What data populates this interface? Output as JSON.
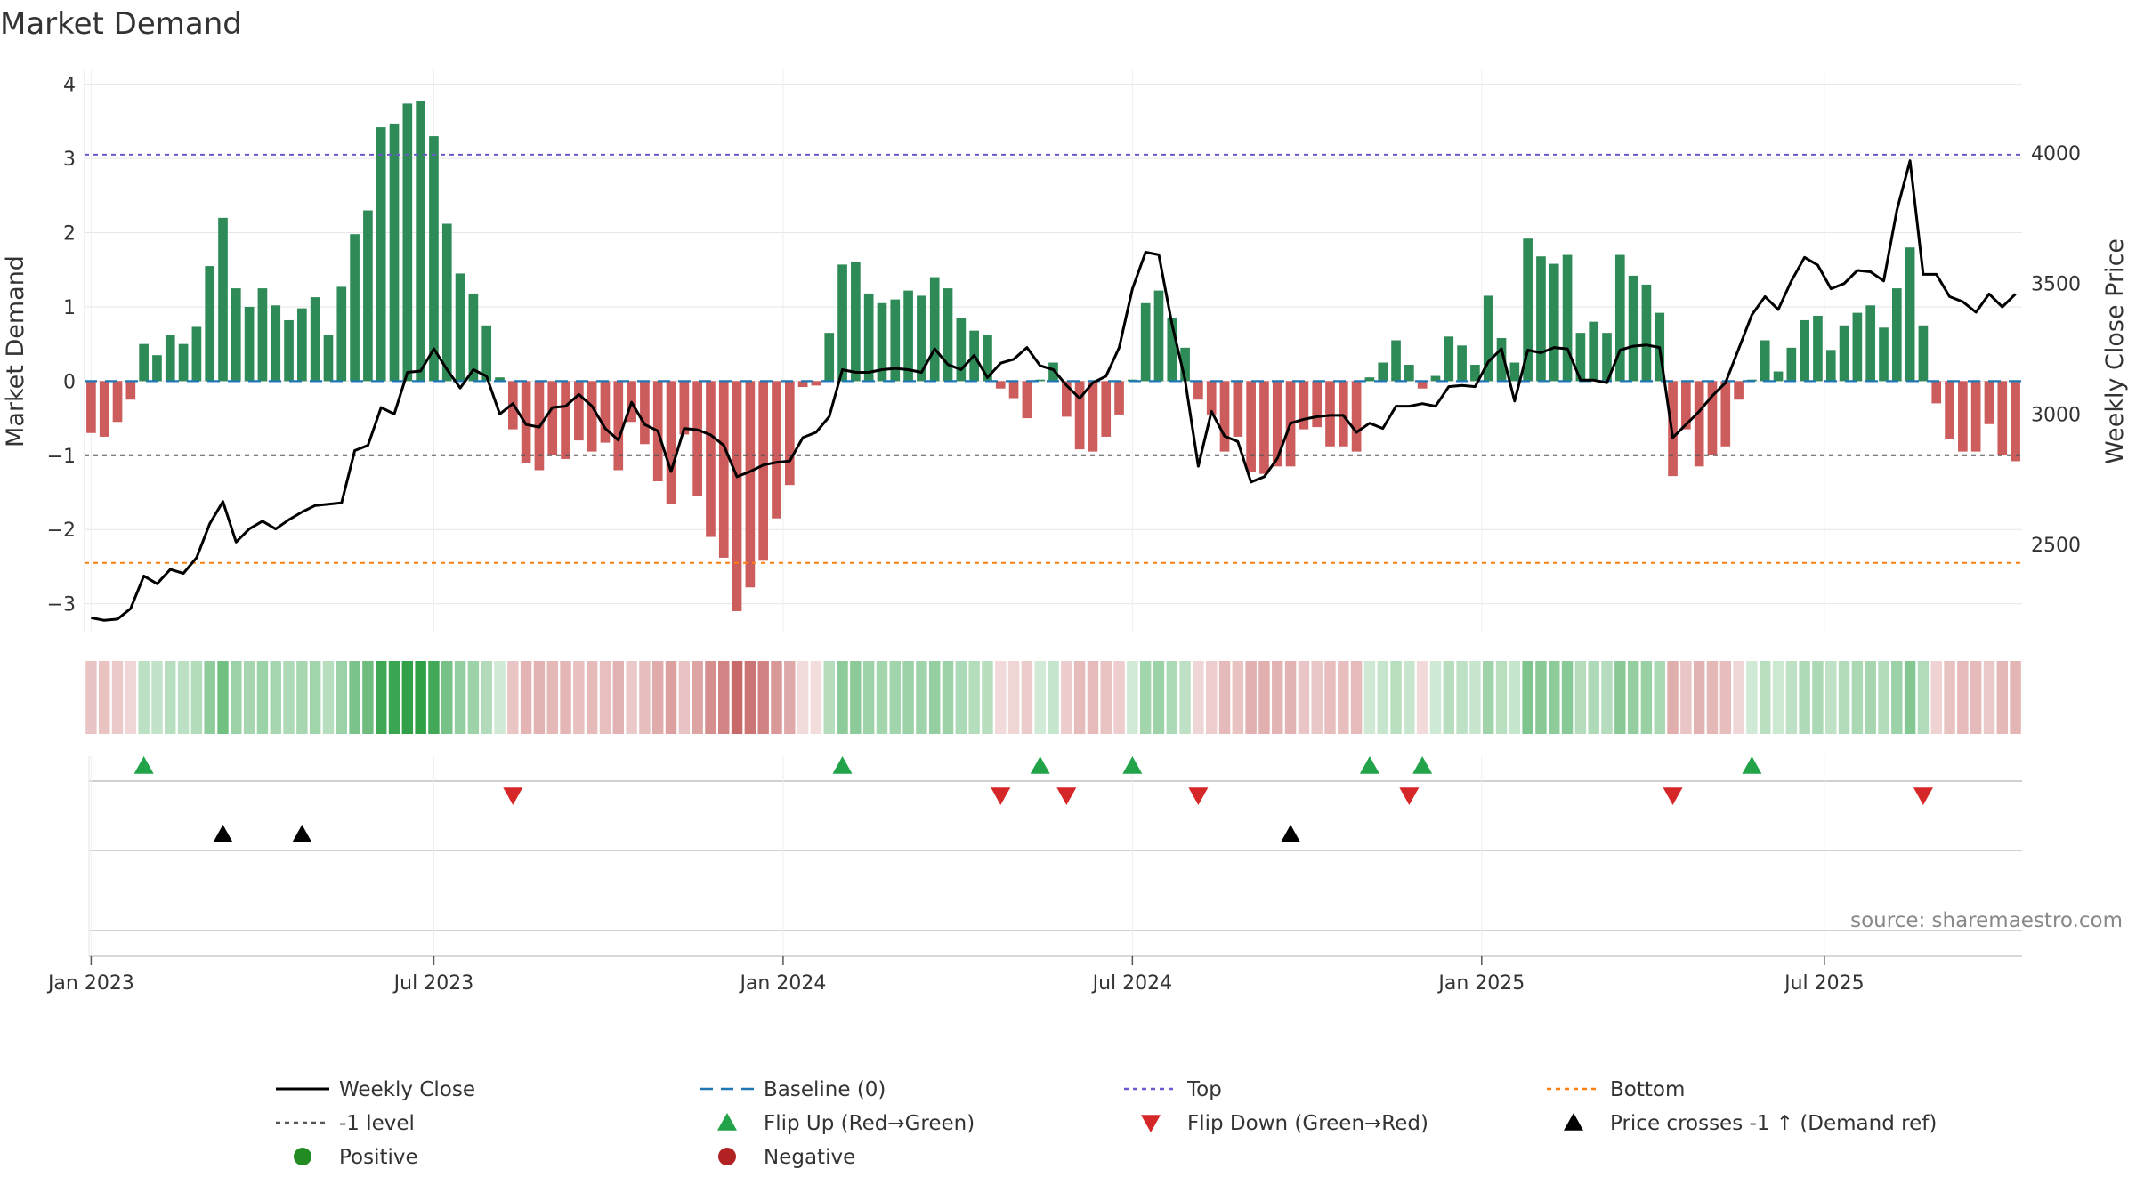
{
  "chart_data": {
    "type": "bar",
    "title": "Market Demand",
    "ylabel": "Market Demand",
    "y2label": "Weekly Close Price",
    "ylim": [
      -3.4,
      4.2
    ],
    "y2lim": [
      2160,
      4320
    ],
    "yticks": [
      -3,
      -2,
      -1,
      0,
      1,
      2,
      3,
      4
    ],
    "yticklabels": [
      "−3",
      "−2",
      "−1",
      "0",
      "1",
      "2",
      "3",
      "4"
    ],
    "y2ticks": [
      2500,
      3000,
      3500,
      4000
    ],
    "y2ticklabels": [
      "2500",
      "3000",
      "3500",
      "4000"
    ],
    "xaxis": {
      "weeks": 146,
      "ticks": [
        {
          "week": 1,
          "label": "Jan 2023"
        },
        {
          "week": 27,
          "label": "Jul 2023"
        },
        {
          "week": 53.5,
          "label": "Jan 2024"
        },
        {
          "week": 80,
          "label": "Jul 2024"
        },
        {
          "week": 106.5,
          "label": "Jan 2025"
        },
        {
          "week": 132.5,
          "label": "Jul 2025"
        }
      ]
    },
    "reference_lines": [
      {
        "name": "Baseline (0)",
        "value": 0,
        "color": "#1f77b4",
        "style": "dashed"
      },
      {
        "name": "Top",
        "value": 3.05,
        "color": "#6a5acd",
        "style": "dotted"
      },
      {
        "name": "Bottom",
        "value": -2.45,
        "color": "#ff7f0e",
        "style": "dotted"
      },
      {
        "name": "-1 level",
        "value": -1,
        "color": "#555555",
        "style": "dotted"
      }
    ],
    "demand": [
      -0.7,
      -0.75,
      -0.55,
      -0.25,
      0.5,
      0.35,
      0.62,
      0.5,
      0.73,
      1.55,
      2.2,
      1.25,
      1.0,
      1.25,
      1.02,
      0.82,
      0.98,
      1.13,
      0.62,
      1.27,
      1.98,
      2.3,
      3.42,
      3.47,
      3.74,
      3.78,
      3.3,
      2.12,
      1.45,
      1.18,
      0.75,
      0.05,
      -0.65,
      -1.1,
      -1.2,
      -1.0,
      -1.05,
      -0.8,
      -0.95,
      -0.83,
      -1.2,
      -0.55,
      -0.85,
      -1.35,
      -1.65,
      -0.72,
      -1.55,
      -2.1,
      -2.38,
      -3.1,
      -2.78,
      -2.42,
      -1.85,
      -1.4,
      -0.08,
      -0.06,
      0.65,
      1.57,
      1.6,
      1.18,
      1.05,
      1.1,
      1.22,
      1.15,
      1.4,
      1.25,
      0.85,
      0.68,
      0.62,
      -0.1,
      -0.23,
      -0.5,
      0.02,
      0.25,
      -0.48,
      -0.92,
      -0.95,
      -0.75,
      -0.45,
      0.02,
      1.05,
      1.22,
      0.85,
      0.45,
      -0.25,
      -0.45,
      -0.95,
      -0.75,
      -1.22,
      -1.25,
      -1.15,
      -1.15,
      -0.65,
      -0.62,
      -0.88,
      -0.88,
      -0.95,
      0.05,
      0.25,
      0.55,
      0.22,
      -0.1,
      0.07,
      0.6,
      0.48,
      0.22,
      1.15,
      0.58,
      0.25,
      1.92,
      1.68,
      1.58,
      1.7,
      0.65,
      0.8,
      0.65,
      1.7,
      1.42,
      1.3,
      0.92,
      -1.28,
      -0.65,
      -1.15,
      -1.0,
      -0.88,
      -0.25,
      0.02,
      0.55,
      0.13,
      0.45,
      0.82,
      0.88,
      0.42,
      0.75,
      0.92,
      1.02,
      0.72,
      1.25,
      1.8,
      0.75,
      -0.3,
      -0.78,
      -0.95,
      -0.95,
      -0.58,
      -1.0,
      -1.08
    ],
    "weekly_close": [
      2220,
      2210,
      2215,
      2255,
      2380,
      2350,
      2405,
      2390,
      2450,
      2580,
      2665,
      2510,
      2560,
      2590,
      2560,
      2595,
      2625,
      2650,
      2655,
      2660,
      2860,
      2880,
      3025,
      3000,
      3160,
      3165,
      3250,
      3170,
      3100,
      3170,
      3145,
      3000,
      3040,
      2960,
      2950,
      3025,
      3030,
      3075,
      3030,
      2945,
      2900,
      3045,
      2960,
      2935,
      2780,
      2945,
      2940,
      2920,
      2880,
      2760,
      2780,
      2805,
      2815,
      2820,
      2910,
      2930,
      2990,
      3170,
      3160,
      3160,
      3170,
      3175,
      3170,
      3160,
      3250,
      3190,
      3170,
      3225,
      3140,
      3195,
      3210,
      3255,
      3185,
      3170,
      3110,
      3060,
      3120,
      3145,
      3255,
      3480,
      3620,
      3610,
      3345,
      3130,
      2800,
      3010,
      2915,
      2895,
      2740,
      2760,
      2830,
      2965,
      2980,
      2990,
      2995,
      2995,
      2930,
      2965,
      2945,
      3030,
      3030,
      3040,
      3030,
      3105,
      3110,
      3105,
      3200,
      3250,
      3050,
      3245,
      3235,
      3255,
      3250,
      3130,
      3130,
      3120,
      3245,
      3260,
      3265,
      3255,
      2910,
      2960,
      3010,
      3070,
      3120,
      3250,
      3380,
      3450,
      3400,
      3510,
      3600,
      3570,
      3480,
      3500,
      3550,
      3545,
      3510,
      3780,
      3970,
      3535,
      3535,
      3450,
      3430,
      3390,
      3460,
      3410,
      3460
    ],
    "flip_up_weeks": [
      4,
      57,
      72,
      79,
      97,
      101,
      126
    ],
    "flip_down_weeks": [
      32,
      69,
      74,
      84,
      100,
      120,
      139
    ],
    "price_cross_weeks": [
      10,
      16,
      91
    ],
    "source": "source: sharemaestro.com",
    "legend": [
      {
        "label": "Weekly Close",
        "kind": "line",
        "color": "#000000"
      },
      {
        "label": "Baseline (0)",
        "kind": "dash",
        "color": "#1f77b4"
      },
      {
        "label": "Top",
        "kind": "dot",
        "color": "#6a5acd"
      },
      {
        "label": "Bottom",
        "kind": "dot",
        "color": "#ff7f0e"
      },
      {
        "label": "-1 level",
        "kind": "dot",
        "color": "#555555"
      },
      {
        "label": "Flip Up (Red→Green)",
        "kind": "tri-up",
        "color": "#22a34a"
      },
      {
        "label": "Flip Down (Green→Red)",
        "kind": "tri-down",
        "color": "#d62728"
      },
      {
        "label": "Price crosses -1 ↑ (Demand ref)",
        "kind": "tri-up",
        "color": "#000000"
      },
      {
        "label": "Positive",
        "kind": "dot-circle",
        "color": "#228b22"
      },
      {
        "label": "Negative",
        "kind": "dot-circle",
        "color": "#b22222"
      }
    ],
    "colors": {
      "positive_bar": "#2e8b57",
      "negative_bar": "#cd5c5c",
      "line": "#000000",
      "grid": "#e6e6e6"
    }
  }
}
